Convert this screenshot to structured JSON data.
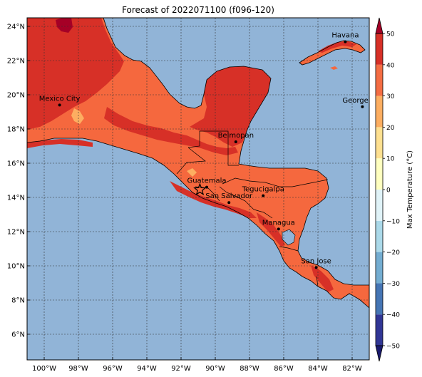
{
  "title": "Forecast of 2022071100 (f096-120)",
  "map": {
    "lon_range": [
      -101,
      -81
    ],
    "lat_range": [
      4.5,
      24.5
    ],
    "lon_ticks": [
      {
        "value": -100,
        "label": "100°W"
      },
      {
        "value": -98,
        "label": "98°W"
      },
      {
        "value": -96,
        "label": "96°W"
      },
      {
        "value": -94,
        "label": "94°W"
      },
      {
        "value": -92,
        "label": "92°W"
      },
      {
        "value": -90,
        "label": "90°W"
      },
      {
        "value": -88,
        "label": "88°W"
      },
      {
        "value": -86,
        "label": "86°W"
      },
      {
        "value": -84,
        "label": "84°W"
      },
      {
        "value": -82,
        "label": "82°W"
      }
    ],
    "lat_ticks": [
      {
        "value": 6,
        "label": "6°N"
      },
      {
        "value": 8,
        "label": "8°N"
      },
      {
        "value": 10,
        "label": "10°N"
      },
      {
        "value": 12,
        "label": "12°N"
      },
      {
        "value": 14,
        "label": "14°N"
      },
      {
        "value": 16,
        "label": "16°N"
      },
      {
        "value": 18,
        "label": "18°N"
      },
      {
        "value": 20,
        "label": "20°N"
      },
      {
        "value": 22,
        "label": "22°N"
      },
      {
        "value": 24,
        "label": "24°N"
      }
    ],
    "colors": {
      "ocean": "#91b4d7",
      "band_20_30": "#f5683e",
      "band_30_40": "#d73027",
      "band_40_50": "#a50026",
      "band_10_20": "#fdae61"
    },
    "cities": [
      {
        "name": "Havana",
        "lon": -82.4,
        "lat": 23.1
      },
      {
        "name": "Mexico City",
        "lon": -99.1,
        "lat": 19.4
      },
      {
        "name": "George Tov",
        "lon": -81.4,
        "lat": 19.3
      },
      {
        "name": "Belmopan",
        "lon": -88.8,
        "lat": 17.25
      },
      {
        "name": "Guatemala",
        "lon": -90.5,
        "lat": 14.6
      },
      {
        "name": "Tegucigalpa",
        "lon": -87.2,
        "lat": 14.1
      },
      {
        "name": "San Salvador",
        "lon": -89.2,
        "lat": 13.7
      },
      {
        "name": "Managua",
        "lon": -86.3,
        "lat": 12.15
      },
      {
        "name": "San Jose",
        "lon": -84.1,
        "lat": 9.9
      }
    ],
    "star": {
      "lon": -90.9,
      "lat": 14.45
    }
  },
  "colorbar": {
    "label": "Max Temperature (°C)",
    "levels": [
      -50,
      -40,
      -30,
      -20,
      -10,
      0,
      10,
      20,
      30,
      40,
      50
    ],
    "tick_labels": [
      "−50",
      "−40",
      "−30",
      "−20",
      "−10",
      "0",
      "10",
      "20",
      "30",
      "40",
      "50"
    ],
    "colors": [
      "#313695",
      "#4575b4",
      "#74add1",
      "#abd9e9",
      "#e0f3f8",
      "#ffffbf",
      "#fee090",
      "#fdae61",
      "#f46d43",
      "#d73027"
    ],
    "under_color": "#1a1a6e",
    "over_color": "#a50026"
  }
}
